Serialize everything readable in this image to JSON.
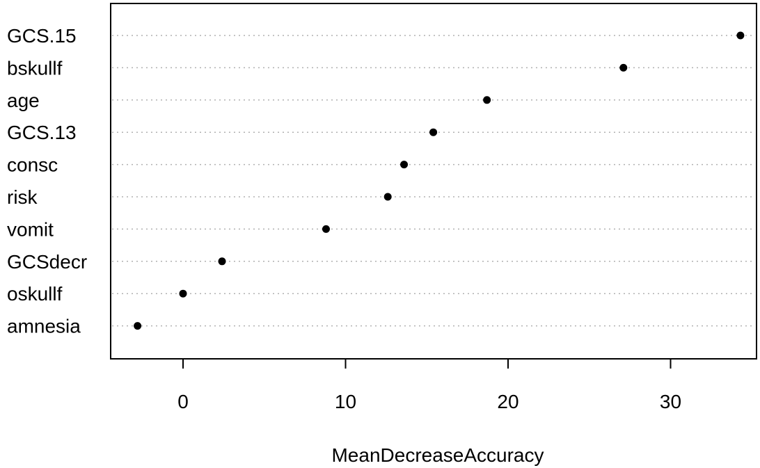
{
  "chart_data": {
    "type": "scatter",
    "title": "",
    "xlabel": "MeanDecreaseAccuracy",
    "ylabel": "",
    "xlim": [
      -4.6,
      35.2
    ],
    "grid": true,
    "legend": "none",
    "categories": [
      "GCS.15",
      "bskullf",
      "age",
      "GCS.13",
      "consc",
      "risk",
      "vomit",
      "GCSdecr",
      "oskullf",
      "amnesia"
    ],
    "values": [
      34.3,
      27.1,
      18.7,
      15.4,
      13.6,
      12.6,
      8.8,
      2.4,
      0.0,
      -2.8
    ],
    "xticks": [
      "0",
      "10",
      "20",
      "30"
    ],
    "xtick_values": [
      0,
      10,
      20,
      30
    ],
    "colors": {
      "point": "#000000",
      "grid": "#b0b0b0",
      "axis": "#000000"
    }
  }
}
